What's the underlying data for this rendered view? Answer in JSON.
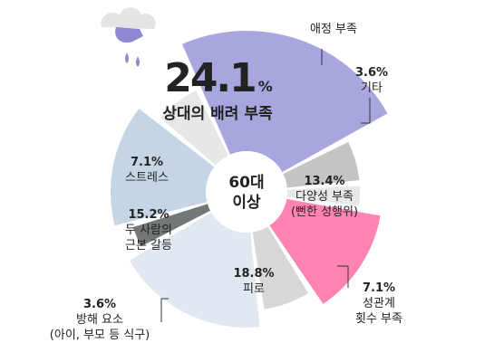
{
  "chart_data": {
    "type": "pie",
    "center_label": [
      "60대",
      "이상"
    ],
    "slices": [
      {
        "value": 24.1,
        "value_label": "24.1",
        "percent_sign": "%",
        "label": [
          "상대의 배려 부족"
        ],
        "color": "#a8a6de"
      },
      {
        "value": 6.4,
        "value_label": "",
        "label": [
          "애정 부족"
        ],
        "color": "#c3c5c4"
      },
      {
        "value": 3.6,
        "value_label": "3.6%",
        "label": [
          "기타"
        ],
        "color": "#e7e8e8"
      },
      {
        "value": 13.4,
        "value_label": "13.4%",
        "label": [
          "다양성 부족",
          "(뻔한 성행위)"
        ],
        "color": "#ff83b3"
      },
      {
        "value": 7.1,
        "value_label": "7.1%",
        "label": [
          "성관계",
          "횟수 부족"
        ],
        "color": "#d6d8d8"
      },
      {
        "value": 18.8,
        "value_label": "18.8%",
        "label": [
          "피로"
        ],
        "color": "#e2e8f2"
      },
      {
        "value": 3.6,
        "value_label": "3.6%",
        "label": [
          "방해 요소",
          "(아이, 부모 등 식구)"
        ],
        "color": "#737876"
      },
      {
        "value": 15.2,
        "value_label": "15.2%",
        "label": [
          "두 사람의",
          "근본 갈등"
        ],
        "color": "#c5d5e6"
      },
      {
        "value": 7.1,
        "value_label": "7.1%",
        "label": [
          "스트레스"
        ],
        "color": "#e6e7e7"
      }
    ]
  }
}
